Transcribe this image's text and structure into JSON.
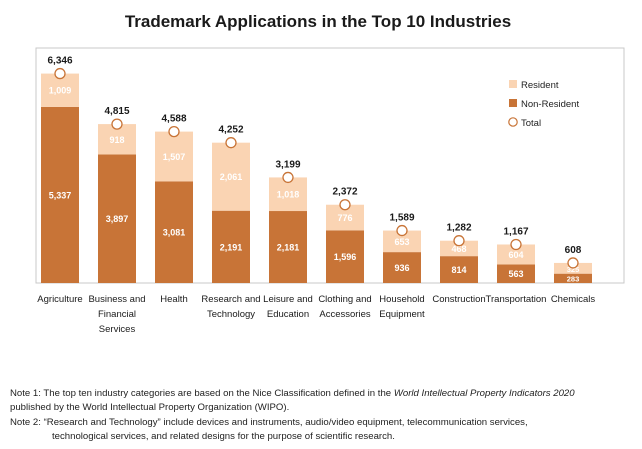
{
  "colors": {
    "resident": "#fad4b3",
    "non_resident": "#c87437",
    "total_marker_stroke": "#c87437",
    "plot_border": "#c9c9c9"
  },
  "chart_data": {
    "type": "bar",
    "stacked": true,
    "title": "Trademark Applications in the Top 10 Industries",
    "xlabel": "",
    "ylabel": "",
    "ylim": [
      0,
      7000
    ],
    "grid": false,
    "legend_position": "top-right",
    "categories": [
      [
        "Agriculture"
      ],
      [
        "Business and",
        "Financial",
        "Services"
      ],
      [
        "Health"
      ],
      [
        "Research and",
        "Technology"
      ],
      [
        "Leisure and",
        "Education"
      ],
      [
        "Clothing and",
        "Accessories"
      ],
      [
        "Household",
        "Equipment"
      ],
      [
        "Construction"
      ],
      [
        "Transportation"
      ],
      [
        "Chemicals"
      ]
    ],
    "series": [
      {
        "name": "Non-Resident",
        "values": [
          5337,
          3897,
          3081,
          2191,
          2181,
          1596,
          936,
          814,
          563,
          283
        ],
        "labels": [
          "5,337",
          "3,897",
          "3,081",
          "2,191",
          "2,181",
          "1,596",
          "936",
          "814",
          "563",
          "283"
        ]
      },
      {
        "name": "Resident",
        "values": [
          1009,
          918,
          1507,
          2061,
          1018,
          776,
          653,
          468,
          604,
          325
        ],
        "labels": [
          "1,009",
          "918",
          "1,507",
          "2,061",
          "1,018",
          "776",
          "653",
          "468",
          "604",
          "325"
        ]
      }
    ],
    "totals": {
      "name": "Total",
      "values": [
        6346,
        4815,
        4588,
        4252,
        3199,
        2372,
        1589,
        1282,
        1167,
        608
      ],
      "labels": [
        "6,346",
        "4,815",
        "4,588",
        "4,252",
        "3,199",
        "2,372",
        "1,589",
        "1,282",
        "1,167",
        "608"
      ]
    },
    "legend": [
      "Resident",
      "Non-Resident",
      "Total"
    ]
  },
  "notes": {
    "note1_a": "Note 1: The top ten industry categories are based on the Nice Classification defined in the ",
    "note1_italic": "World Intellectual Property Indicators 2020",
    "note1_b": " published by the World Intellectual Property Organization (WIPO).",
    "note2_line1": "Note 2: “Research and Technology” include devices and instruments, audio/video equipment, telecommunication services,",
    "note2_line2": "technological services, and related designs for the purpose of scientific research."
  }
}
